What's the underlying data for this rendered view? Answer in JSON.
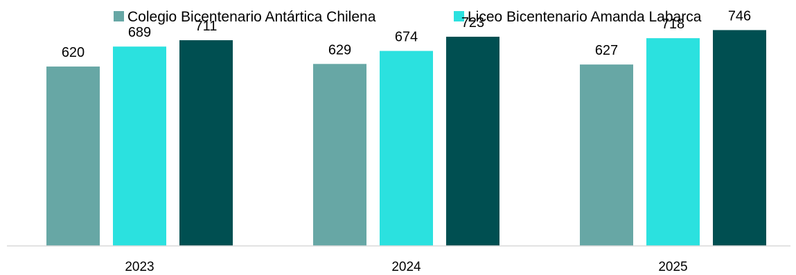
{
  "chart_data": {
    "type": "bar",
    "title": "",
    "xlabel": "",
    "ylabel": "",
    "categories": [
      "2023",
      "2024",
      "2025"
    ],
    "series": [
      {
        "name": "Colegio Bicentenario Antártica Chilena",
        "values": [
          620,
          629,
          627
        ],
        "color": "#67a7a5"
      },
      {
        "name": "Liceo Bicentenario Amanda Labarca",
        "values": [
          689,
          674,
          718
        ],
        "color": "#2be1df"
      },
      {
        "values": [
          711,
          723,
          746
        ],
        "color": "#004f51"
      }
    ],
    "ylim": [
      0,
      850
    ],
    "grid": false,
    "legend": "top",
    "data_labels": true,
    "axis_color": "#d9d9d9"
  }
}
